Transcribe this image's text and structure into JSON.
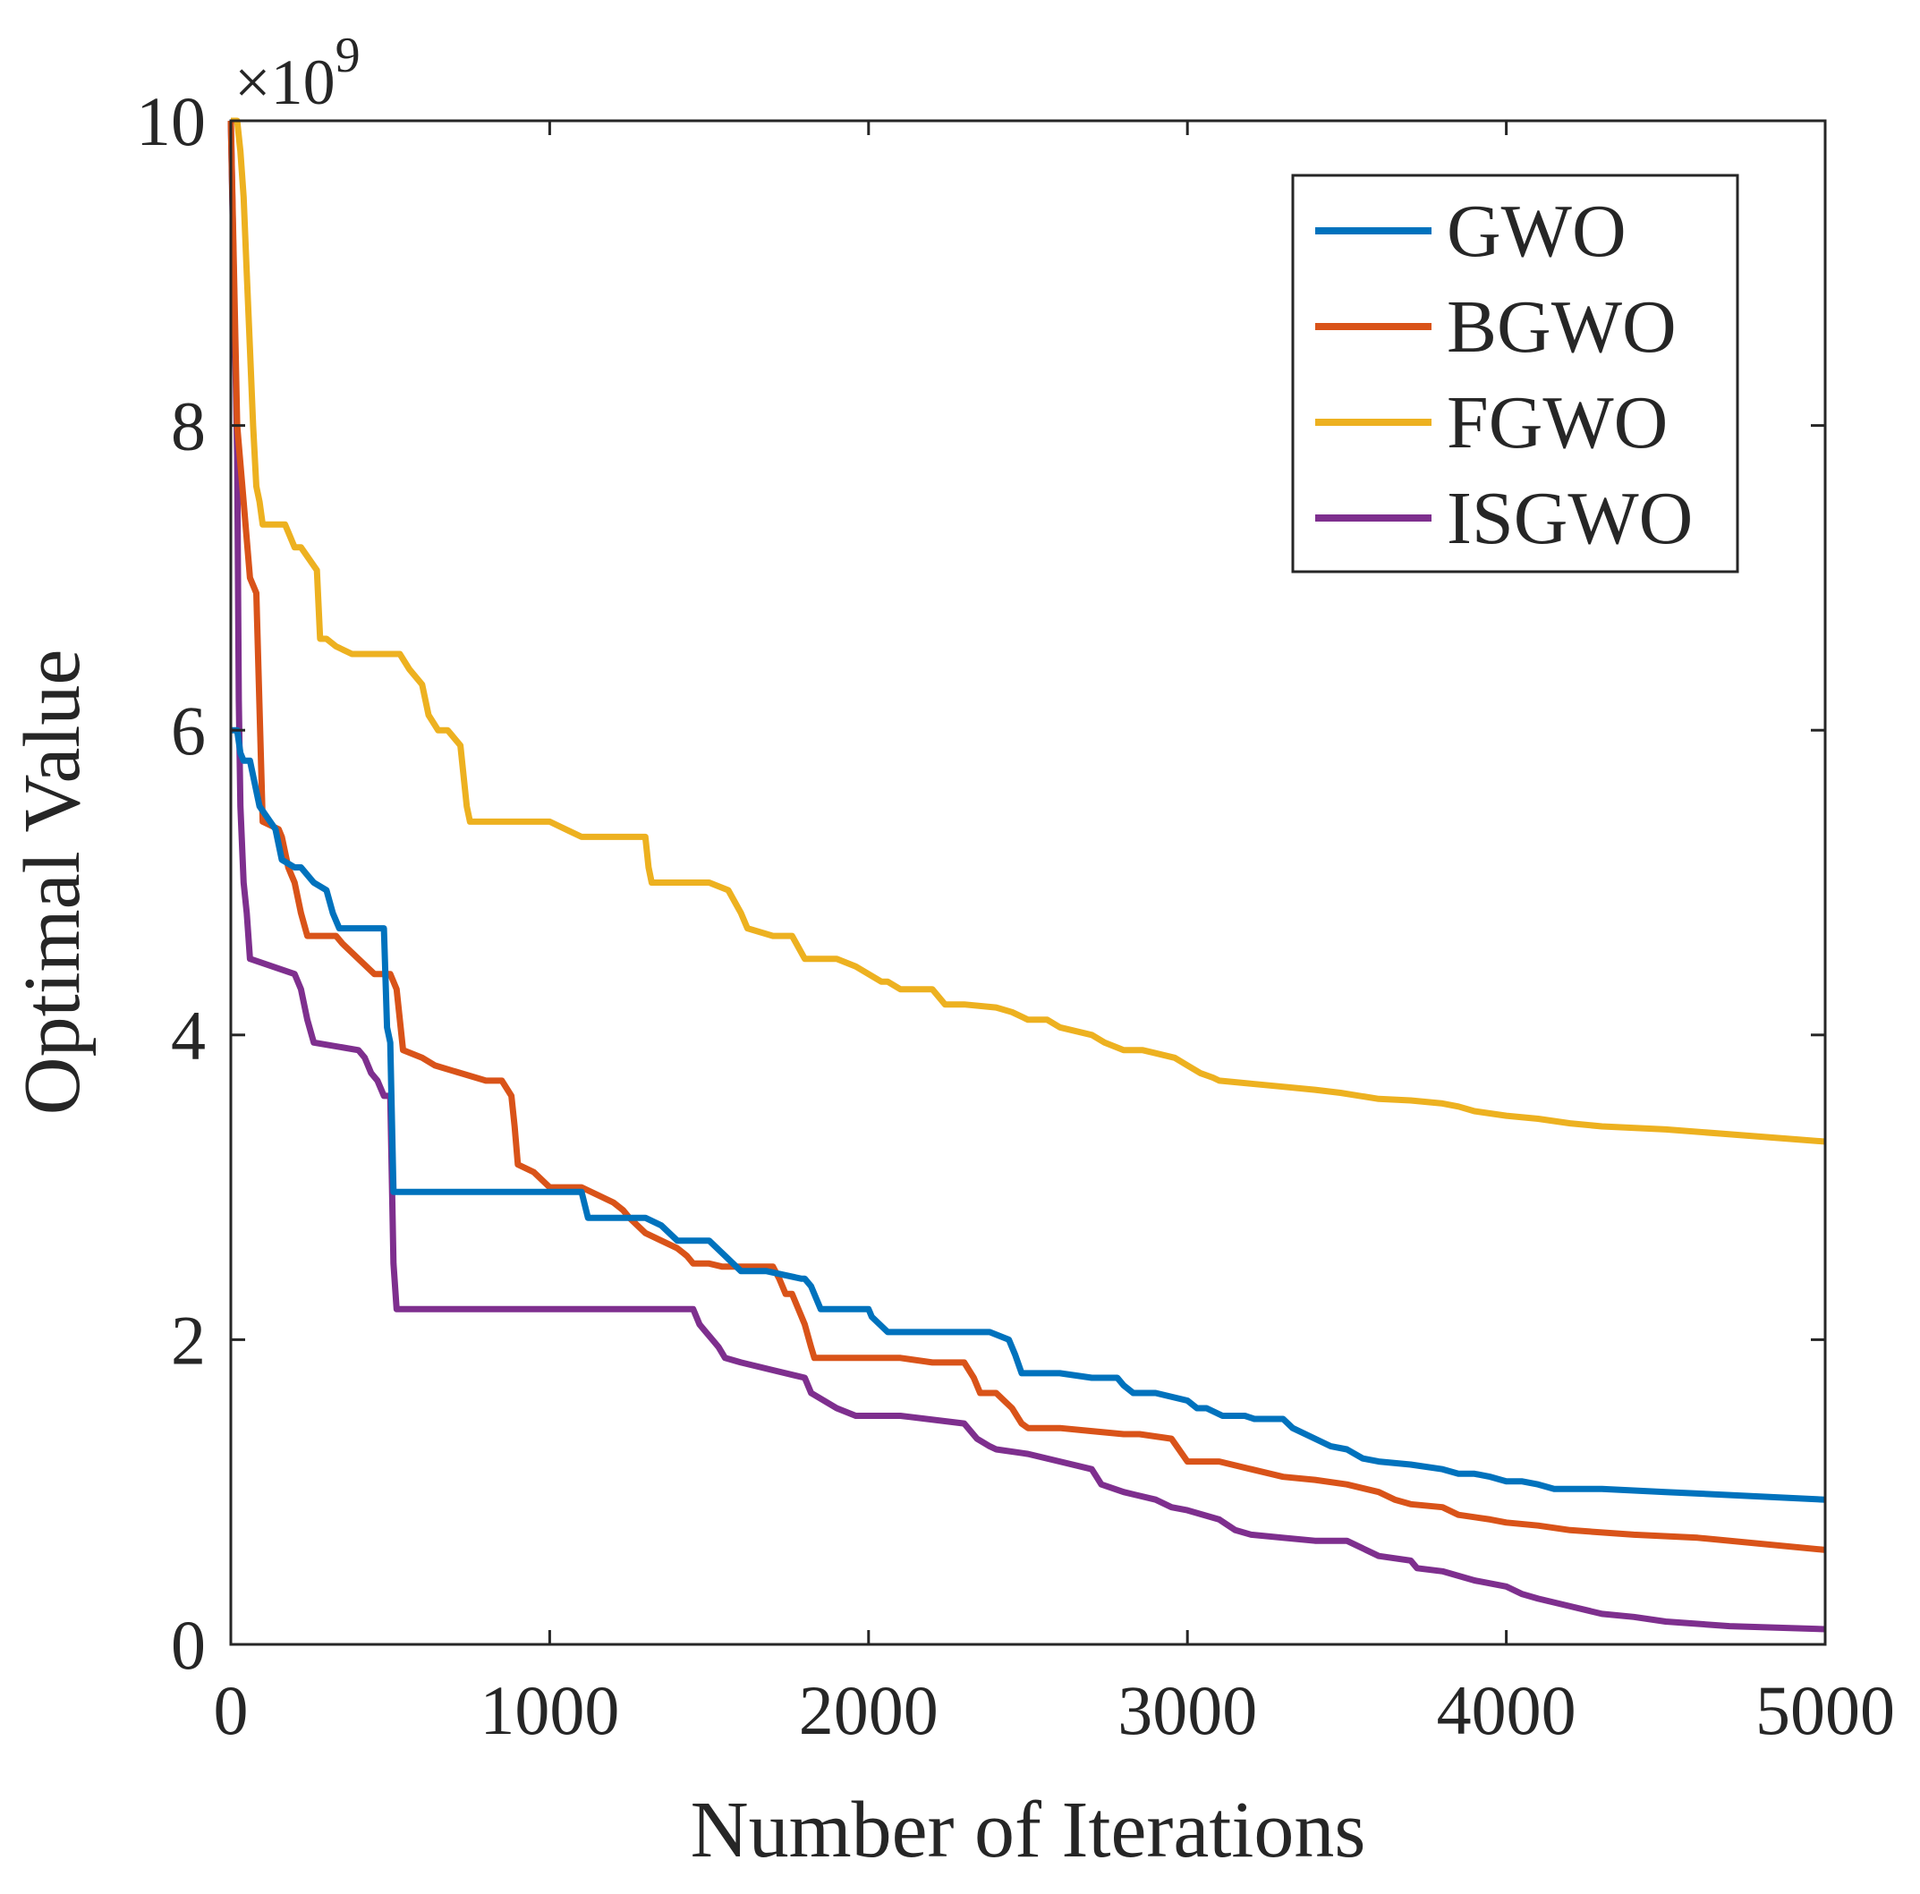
{
  "chart_data": {
    "type": "line",
    "title": "",
    "xlabel": "Number of Iterations",
    "ylabel": "Optimal Value",
    "xlim": [
      0,
      5000
    ],
    "ylim": [
      0,
      10
    ],
    "y_exponent_prefix": "×10",
    "y_exponent_power": "9",
    "xticks": [
      0,
      1000,
      2000,
      3000,
      4000,
      5000
    ],
    "xtick_labels": [
      "0",
      "1000",
      "2000",
      "3000",
      "4000",
      "5000"
    ],
    "yticks": [
      0,
      2,
      4,
      6,
      8,
      10
    ],
    "ytick_labels": [
      "0",
      "2",
      "4",
      "6",
      "8",
      "10"
    ],
    "grid": false,
    "legend_position": "top-right",
    "series": [
      {
        "name": "GWO",
        "color": "#0072BD",
        "x": [
          0,
          20,
          30,
          40,
          60,
          90,
          140,
          160,
          200,
          220,
          260,
          300,
          320,
          340,
          380,
          480,
          490,
          500,
          510,
          520,
          1100,
          1120,
          1200,
          1300,
          1350,
          1400,
          1500,
          1550,
          1600,
          1680,
          1790,
          1800,
          1820,
          1850,
          1900,
          2000,
          2010,
          2060,
          2130,
          2170,
          2200,
          2230,
          2300,
          2380,
          2440,
          2460,
          2480,
          2600,
          2700,
          2780,
          2800,
          2830,
          2900,
          3000,
          3030,
          3060,
          3110,
          3180,
          3210,
          3300,
          3330,
          3400,
          3450,
          3500,
          3550,
          3600,
          3700,
          3800,
          3850,
          3900,
          3950,
          4000,
          4050,
          4100,
          4150,
          4200,
          4300,
          4500,
          5000
        ],
        "values": [
          6.0,
          6.0,
          5.85,
          5.8,
          5.8,
          5.5,
          5.35,
          5.15,
          5.1,
          5.1,
          5.0,
          4.95,
          4.8,
          4.7,
          4.7,
          4.7,
          4.05,
          3.95,
          2.97,
          2.97,
          2.97,
          2.8,
          2.8,
          2.8,
          2.75,
          2.65,
          2.65,
          2.55,
          2.45,
          2.45,
          2.4,
          2.4,
          2.35,
          2.2,
          2.2,
          2.2,
          2.15,
          2.05,
          2.05,
          2.05,
          2.05,
          2.05,
          2.05,
          2.05,
          2.0,
          1.9,
          1.78,
          1.78,
          1.75,
          1.75,
          1.7,
          1.65,
          1.65,
          1.6,
          1.55,
          1.55,
          1.5,
          1.5,
          1.48,
          1.48,
          1.42,
          1.35,
          1.3,
          1.28,
          1.22,
          1.2,
          1.18,
          1.15,
          1.12,
          1.12,
          1.1,
          1.07,
          1.07,
          1.05,
          1.02,
          1.02,
          1.02,
          1.0,
          0.95
        ]
      },
      {
        "name": "BGWO",
        "color": "#D95319",
        "x": [
          0,
          20,
          40,
          60,
          80,
          100,
          150,
          160,
          170,
          180,
          190,
          200,
          220,
          240,
          330,
          350,
          450,
          480,
          500,
          520,
          540,
          600,
          640,
          720,
          800,
          850,
          880,
          890,
          900,
          950,
          1000,
          1100,
          1150,
          1200,
          1230,
          1250,
          1300,
          1350,
          1400,
          1430,
          1450,
          1500,
          1540,
          1600,
          1650,
          1700,
          1720,
          1740,
          1760,
          1780,
          1800,
          1820,
          1830,
          1850,
          1900,
          2000,
          2100,
          2200,
          2250,
          2300,
          2330,
          2350,
          2380,
          2400,
          2450,
          2480,
          2500,
          2600,
          2700,
          2800,
          2850,
          2950,
          3000,
          3100,
          3200,
          3300,
          3400,
          3500,
          3600,
          3650,
          3700,
          3800,
          3850,
          3950,
          4000,
          4100,
          4200,
          4400,
          4600,
          5000
        ],
        "values": [
          10.0,
          8.0,
          7.5,
          7.0,
          6.9,
          5.4,
          5.35,
          5.3,
          5.2,
          5.1,
          5.05,
          5.0,
          4.8,
          4.65,
          4.65,
          4.6,
          4.4,
          4.4,
          4.4,
          4.3,
          3.9,
          3.85,
          3.8,
          3.75,
          3.7,
          3.7,
          3.6,
          3.4,
          3.15,
          3.1,
          3.0,
          3.0,
          2.95,
          2.9,
          2.85,
          2.8,
          2.7,
          2.65,
          2.6,
          2.55,
          2.5,
          2.5,
          2.48,
          2.48,
          2.48,
          2.48,
          2.4,
          2.3,
          2.3,
          2.2,
          2.1,
          1.95,
          1.88,
          1.88,
          1.88,
          1.88,
          1.88,
          1.85,
          1.85,
          1.85,
          1.75,
          1.65,
          1.65,
          1.65,
          1.55,
          1.45,
          1.42,
          1.42,
          1.4,
          1.38,
          1.38,
          1.35,
          1.2,
          1.2,
          1.15,
          1.1,
          1.08,
          1.05,
          1.0,
          0.95,
          0.92,
          0.9,
          0.85,
          0.82,
          0.8,
          0.78,
          0.75,
          0.72,
          0.7,
          0.62
        ]
      },
      {
        "name": "FGWO",
        "color": "#EDB120",
        "x": [
          0,
          20,
          30,
          40,
          50,
          60,
          70,
          80,
          90,
          100,
          170,
          180,
          200,
          220,
          270,
          280,
          300,
          330,
          380,
          400,
          450,
          530,
          560,
          600,
          620,
          650,
          680,
          720,
          740,
          750,
          760,
          800,
          1000,
          1100,
          1200,
          1300,
          1310,
          1320,
          1400,
          1500,
          1560,
          1600,
          1620,
          1700,
          1760,
          1800,
          1820,
          1900,
          1960,
          2000,
          2040,
          2060,
          2100,
          2120,
          2200,
          2220,
          2240,
          2300,
          2400,
          2450,
          2500,
          2560,
          2600,
          2700,
          2740,
          2800,
          2860,
          2900,
          2960,
          3000,
          3040,
          3080,
          3100,
          3200,
          3300,
          3400,
          3480,
          3540,
          3600,
          3700,
          3800,
          3850,
          3900,
          4000,
          4100,
          4200,
          4300,
          4500,
          5000
        ],
        "values": [
          10.0,
          10.0,
          9.8,
          9.5,
          9.0,
          8.5,
          8.0,
          7.6,
          7.5,
          7.35,
          7.35,
          7.3,
          7.2,
          7.2,
          7.05,
          6.6,
          6.6,
          6.55,
          6.5,
          6.5,
          6.5,
          6.5,
          6.4,
          6.3,
          6.1,
          6.0,
          6.0,
          5.9,
          5.5,
          5.4,
          5.4,
          5.4,
          5.4,
          5.3,
          5.3,
          5.3,
          5.1,
          5.0,
          5.0,
          5.0,
          4.95,
          4.8,
          4.7,
          4.65,
          4.65,
          4.5,
          4.5,
          4.5,
          4.45,
          4.4,
          4.35,
          4.35,
          4.3,
          4.3,
          4.3,
          4.25,
          4.2,
          4.2,
          4.18,
          4.15,
          4.1,
          4.1,
          4.05,
          4.0,
          3.95,
          3.9,
          3.9,
          3.88,
          3.85,
          3.8,
          3.75,
          3.72,
          3.7,
          3.68,
          3.66,
          3.64,
          3.62,
          3.6,
          3.58,
          3.57,
          3.55,
          3.53,
          3.5,
          3.47,
          3.45,
          3.42,
          3.4,
          3.38,
          3.3
        ]
      },
      {
        "name": "ISGWO",
        "color": "#7E2F8E",
        "x": [
          0,
          20,
          25,
          30,
          40,
          50,
          60,
          200,
          220,
          240,
          260,
          400,
          420,
          440,
          460,
          480,
          500,
          510,
          520,
          1000,
          1450,
          1470,
          1490,
          1510,
          1530,
          1550,
          1600,
          1700,
          1800,
          1820,
          1860,
          1900,
          1960,
          2000,
          2100,
          2300,
          2340,
          2380,
          2400,
          2500,
          2600,
          2700,
          2730,
          2800,
          2900,
          2950,
          3000,
          3100,
          3150,
          3200,
          3300,
          3400,
          3500,
          3580,
          3600,
          3700,
          3720,
          3800,
          3850,
          3900,
          4000,
          4050,
          4100,
          4200,
          4300,
          4400,
          4500,
          4700,
          5000
        ],
        "values": [
          10.0,
          7.8,
          6.2,
          5.5,
          5.0,
          4.8,
          4.5,
          4.4,
          4.3,
          4.1,
          3.95,
          3.9,
          3.85,
          3.75,
          3.7,
          3.6,
          3.6,
          2.5,
          2.2,
          2.2,
          2.2,
          2.1,
          2.05,
          2.0,
          1.95,
          1.88,
          1.85,
          1.8,
          1.75,
          1.65,
          1.6,
          1.55,
          1.5,
          1.5,
          1.5,
          1.45,
          1.35,
          1.3,
          1.28,
          1.25,
          1.2,
          1.15,
          1.05,
          1.0,
          0.95,
          0.9,
          0.88,
          0.82,
          0.75,
          0.72,
          0.7,
          0.68,
          0.68,
          0.6,
          0.58,
          0.55,
          0.5,
          0.48,
          0.45,
          0.42,
          0.38,
          0.33,
          0.3,
          0.25,
          0.2,
          0.18,
          0.15,
          0.12,
          0.1
        ]
      }
    ]
  }
}
